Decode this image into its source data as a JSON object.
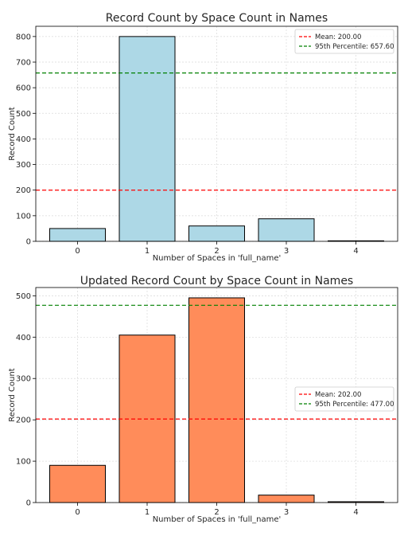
{
  "chart_data": [
    {
      "type": "bar",
      "title": "Record Count by Space Count in Names",
      "xlabel": "Number of Spaces in 'full_name'",
      "ylabel": "Record Count",
      "categories": [
        "0",
        "1",
        "2",
        "3",
        "4"
      ],
      "values": [
        50,
        800,
        60,
        88,
        2
      ],
      "ylim": [
        0,
        840
      ],
      "yticks": [
        0,
        100,
        200,
        300,
        400,
        500,
        600,
        700,
        800
      ],
      "bar_color": "#add8e6",
      "grid": true,
      "legend_position": "upper-right",
      "reference_lines": [
        {
          "label": "Mean: 200.00",
          "value": 200,
          "color": "#ff0000"
        },
        {
          "label": "95th Percentile: 657.60",
          "value": 657.6,
          "color": "#008000"
        }
      ]
    },
    {
      "type": "bar",
      "title": "Updated Record Count by Space Count in Names",
      "xlabel": "Number of Spaces in 'full_name'",
      "ylabel": "Record Count",
      "categories": [
        "0",
        "1",
        "2",
        "3",
        "4"
      ],
      "values": [
        90,
        405,
        495,
        18,
        2
      ],
      "ylim": [
        0,
        520
      ],
      "yticks": [
        0,
        100,
        200,
        300,
        400,
        500
      ],
      "bar_color": "#ff8c5a",
      "grid": true,
      "legend_position": "center-right",
      "reference_lines": [
        {
          "label": "Mean: 202.00",
          "value": 202,
          "color": "#ff0000"
        },
        {
          "label": "95th Percentile: 477.00",
          "value": 477,
          "color": "#008000"
        }
      ]
    }
  ]
}
